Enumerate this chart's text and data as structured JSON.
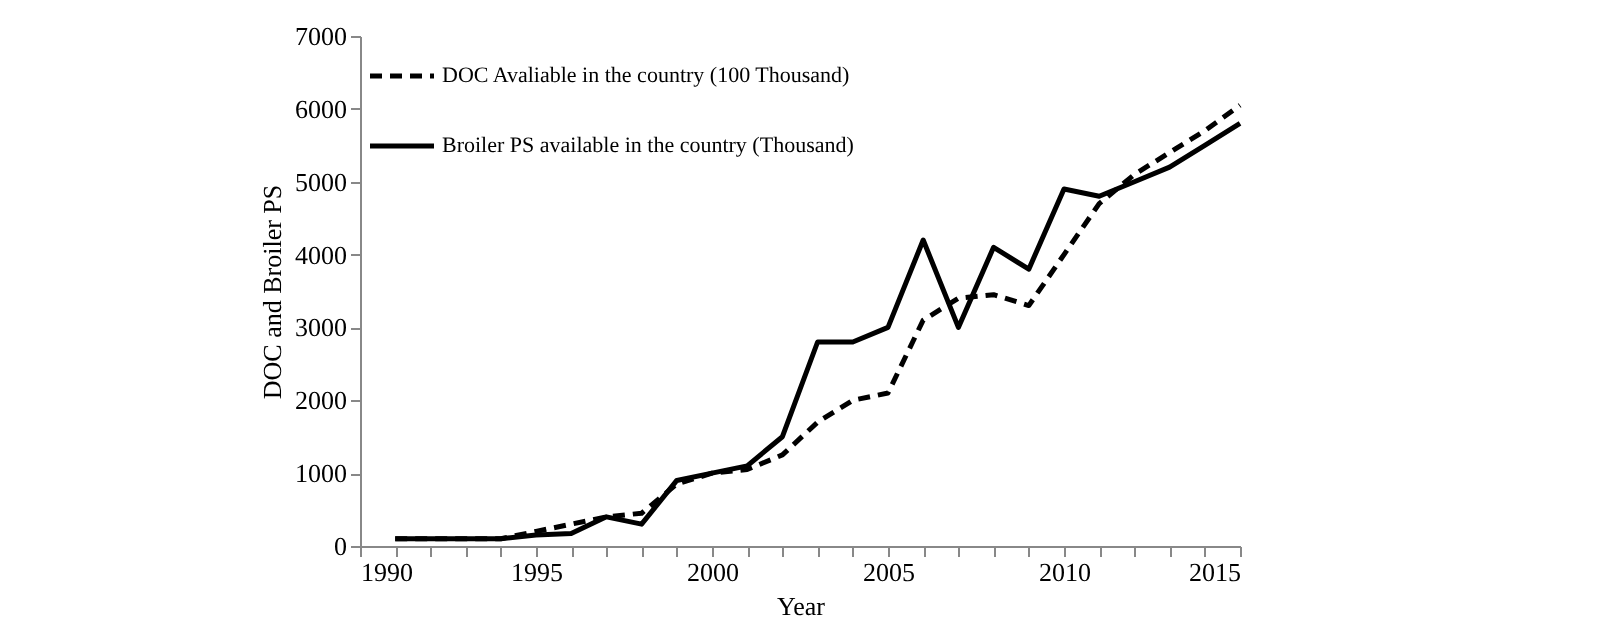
{
  "chart_data": {
    "type": "line",
    "xlabel": "Year",
    "ylabel": "DOC  and  Broiler PS",
    "x": [
      1991,
      1992,
      1993,
      1994,
      1995,
      1996,
      1997,
      1998,
      1999,
      2000,
      2001,
      2002,
      2003,
      2004,
      2005,
      2006,
      2007,
      2008,
      2009,
      2010,
      2011,
      2012,
      2013,
      2014,
      2015
    ],
    "series": [
      {
        "name": "DOC Avaliable in the country (100 Thousand)",
        "color": "#000000",
        "line_style": "dashed",
        "values": [
          100,
          100,
          100,
          100,
          200,
          300,
          400,
          450,
          850,
          1000,
          1050,
          1250,
          1700,
          2000,
          2100,
          3100,
          3400,
          3450,
          3300,
          4000,
          4700,
          5100,
          5400,
          5700,
          6050
        ]
      },
      {
        "name": "Broiler PS available in the country (Thousand)",
        "color": "#000000",
        "line_style": "solid",
        "values": [
          100,
          100,
          100,
          100,
          150,
          170,
          400,
          300,
          900,
          1000,
          1100,
          1500,
          2800,
          2800,
          3000,
          4200,
          3000,
          4100,
          3800,
          4900,
          4800,
          5000,
          5200,
          5500,
          5800
        ]
      }
    ],
    "xlim": [
      1990,
      2015
    ],
    "xticks": [
      1990,
      {
        "value": 1991,
        "label": null
      },
      {
        "value": 1992,
        "label": null
      },
      {
        "value": 1993,
        "label": null
      },
      {
        "value": 1994,
        "label": null
      },
      1995,
      {
        "value": 1996,
        "label": null
      },
      {
        "value": 1997,
        "label": null
      },
      {
        "value": 1998,
        "label": null
      },
      {
        "value": 1999,
        "label": null
      },
      2000,
      {
        "value": 2001,
        "label": null
      },
      {
        "value": 2002,
        "label": null
      },
      {
        "value": 2003,
        "label": null
      },
      {
        "value": 2004,
        "label": null
      },
      2005,
      {
        "value": 2006,
        "label": null
      },
      {
        "value": 2007,
        "label": null
      },
      {
        "value": 2008,
        "label": null
      },
      {
        "value": 2009,
        "label": null
      },
      2010,
      {
        "value": 2011,
        "label": null
      },
      {
        "value": 2012,
        "label": null
      },
      {
        "value": 2013,
        "label": null
      },
      {
        "value": 2014,
        "label": null
      },
      2015
    ],
    "ylim": [
      0,
      7000
    ],
    "yticks": [
      0,
      1000,
      2000,
      3000,
      4000,
      5000,
      6000,
      7000
    ],
    "grid": false,
    "legend": "top left",
    "marker": "none"
  }
}
